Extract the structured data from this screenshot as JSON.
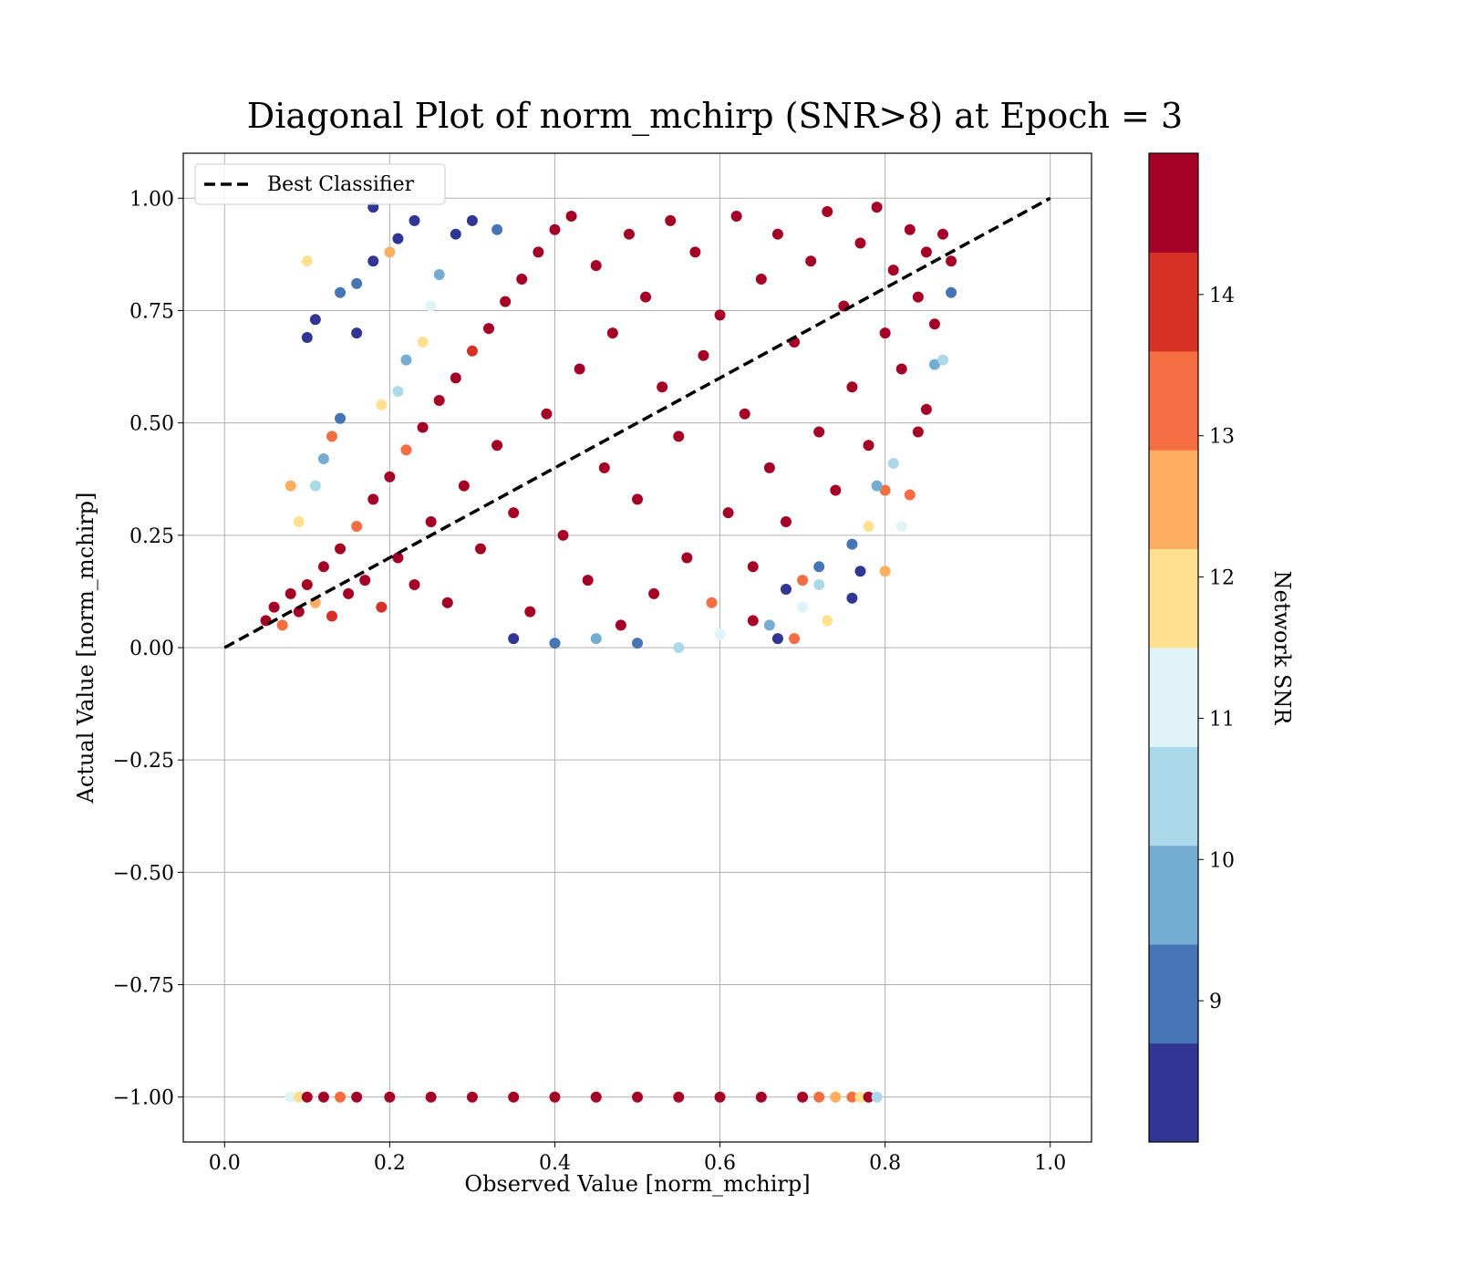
{
  "chart_data": {
    "type": "scatter",
    "title": "Diagonal Plot of norm_mchirp (SNR>8) at Epoch = 3",
    "xlabel": "Observed Value [norm_mchirp]",
    "ylabel": "Actual Value [norm_mchirp]",
    "xlim": [
      -0.05,
      1.05
    ],
    "ylim": [
      -1.1,
      1.1
    ],
    "x_ticks": [
      0.0,
      0.2,
      0.4,
      0.6,
      0.8,
      1.0
    ],
    "x_tick_labels": [
      "0.0",
      "0.2",
      "0.4",
      "0.6",
      "0.8",
      "1.0"
    ],
    "y_ticks": [
      1.0,
      0.75,
      0.5,
      0.25,
      0.0,
      -0.25,
      -0.5,
      -0.75,
      -1.0
    ],
    "y_tick_labels": [
      "1.00",
      "0.75",
      "0.50",
      "0.25",
      "0.00",
      "−0.25",
      "−0.50",
      "−0.75",
      "−1.00"
    ],
    "grid": true,
    "legend": {
      "placement": "upper-left",
      "entries": [
        {
          "label": "Best Classifier",
          "style": "dashed",
          "color": "#000000"
        }
      ]
    },
    "reference_line": {
      "name": "Best Classifier",
      "x": [
        0.0,
        1.0
      ],
      "y": [
        0.0,
        1.0
      ],
      "style": "dashed"
    },
    "color_dimension": "Network SNR",
    "colorbar": {
      "label": "Network SNR",
      "range": [
        8.0,
        15.0
      ],
      "ticks": [
        9,
        10,
        11,
        12,
        13,
        14
      ],
      "tick_labels": [
        "9",
        "10",
        "11",
        "12",
        "13",
        "14"
      ],
      "colors": [
        "#313695",
        "#4575b4",
        "#74add1",
        "#abd9e9",
        "#e0f3f8",
        "#fee090",
        "#fdae61",
        "#f46d43",
        "#d73027",
        "#a50026"
      ]
    },
    "series": [
      {
        "kind": "main-cloud",
        "points": [
          [
            0.05,
            0.06,
            14.8
          ],
          [
            0.06,
            0.09,
            14.5
          ],
          [
            0.07,
            0.05,
            13.2
          ],
          [
            0.08,
            0.12,
            14.9
          ],
          [
            0.09,
            0.08,
            14.6
          ],
          [
            0.1,
            0.14,
            14.9
          ],
          [
            0.11,
            0.1,
            12.8
          ],
          [
            0.12,
            0.18,
            14.7
          ],
          [
            0.13,
            0.07,
            13.9
          ],
          [
            0.14,
            0.22,
            14.8
          ],
          [
            0.15,
            0.12,
            14.9
          ],
          [
            0.16,
            0.27,
            13.5
          ],
          [
            0.17,
            0.15,
            14.9
          ],
          [
            0.18,
            0.33,
            14.6
          ],
          [
            0.19,
            0.09,
            14.2
          ],
          [
            0.2,
            0.38,
            14.9
          ],
          [
            0.21,
            0.2,
            14.8
          ],
          [
            0.22,
            0.44,
            13.1
          ],
          [
            0.23,
            0.14,
            14.9
          ],
          [
            0.24,
            0.49,
            14.7
          ],
          [
            0.25,
            0.28,
            14.9
          ],
          [
            0.26,
            0.55,
            14.4
          ],
          [
            0.27,
            0.1,
            14.9
          ],
          [
            0.28,
            0.6,
            14.8
          ],
          [
            0.29,
            0.36,
            14.9
          ],
          [
            0.3,
            0.66,
            13.8
          ],
          [
            0.31,
            0.22,
            14.9
          ],
          [
            0.32,
            0.71,
            14.6
          ],
          [
            0.33,
            0.45,
            14.9
          ],
          [
            0.34,
            0.77,
            14.8
          ],
          [
            0.35,
            0.3,
            14.9
          ],
          [
            0.36,
            0.82,
            14.3
          ],
          [
            0.37,
            0.08,
            14.9
          ],
          [
            0.38,
            0.88,
            14.7
          ],
          [
            0.39,
            0.52,
            14.9
          ],
          [
            0.4,
            0.93,
            14.8
          ],
          [
            0.41,
            0.25,
            14.9
          ],
          [
            0.42,
            0.96,
            14.5
          ],
          [
            0.43,
            0.62,
            14.9
          ],
          [
            0.44,
            0.15,
            14.8
          ],
          [
            0.45,
            0.85,
            14.9
          ],
          [
            0.46,
            0.4,
            14.7
          ],
          [
            0.47,
            0.7,
            14.9
          ],
          [
            0.48,
            0.05,
            14.6
          ],
          [
            0.49,
            0.92,
            14.9
          ],
          [
            0.5,
            0.33,
            14.8
          ],
          [
            0.51,
            0.78,
            14.9
          ],
          [
            0.52,
            0.12,
            14.4
          ],
          [
            0.53,
            0.58,
            14.9
          ],
          [
            0.54,
            0.95,
            14.8
          ],
          [
            0.55,
            0.47,
            14.9
          ],
          [
            0.56,
            0.2,
            14.7
          ],
          [
            0.57,
            0.88,
            14.9
          ],
          [
            0.58,
            0.65,
            14.6
          ],
          [
            0.59,
            0.1,
            13.6
          ],
          [
            0.6,
            0.74,
            14.9
          ],
          [
            0.61,
            0.3,
            14.8
          ],
          [
            0.62,
            0.96,
            14.9
          ],
          [
            0.63,
            0.52,
            14.5
          ],
          [
            0.64,
            0.18,
            14.9
          ],
          [
            0.65,
            0.82,
            14.8
          ],
          [
            0.66,
            0.4,
            14.9
          ],
          [
            0.67,
            0.92,
            14.7
          ],
          [
            0.68,
            0.28,
            14.9
          ],
          [
            0.69,
            0.68,
            14.6
          ],
          [
            0.7,
            0.15,
            13.4
          ],
          [
            0.71,
            0.86,
            14.9
          ],
          [
            0.72,
            0.48,
            14.8
          ],
          [
            0.73,
            0.97,
            14.9
          ],
          [
            0.74,
            0.35,
            14.3
          ],
          [
            0.75,
            0.76,
            14.9
          ],
          [
            0.76,
            0.58,
            14.8
          ],
          [
            0.77,
            0.9,
            14.9
          ],
          [
            0.78,
            0.45,
            14.7
          ],
          [
            0.79,
            0.98,
            14.9
          ],
          [
            0.8,
            0.7,
            14.6
          ],
          [
            0.81,
            0.84,
            14.9
          ],
          [
            0.82,
            0.62,
            14.8
          ],
          [
            0.83,
            0.93,
            14.9
          ],
          [
            0.84,
            0.78,
            14.5
          ],
          [
            0.85,
            0.88,
            14.9
          ],
          [
            0.86,
            0.72,
            14.8
          ],
          [
            0.87,
            0.92,
            14.9
          ],
          [
            0.88,
            0.86,
            14.7
          ]
        ]
      },
      {
        "kind": "low-snr-scatter",
        "points": [
          [
            0.1,
            0.69,
            8.2
          ],
          [
            0.11,
            0.73,
            8.4
          ],
          [
            0.14,
            0.79,
            9.1
          ],
          [
            0.16,
            0.81,
            9.3
          ],
          [
            0.18,
            0.98,
            8.3
          ],
          [
            0.16,
            0.7,
            8.6
          ],
          [
            0.18,
            0.86,
            8.2
          ],
          [
            0.2,
            0.88,
            12.3
          ],
          [
            0.21,
            0.91,
            8.5
          ],
          [
            0.23,
            0.95,
            8.2
          ],
          [
            0.12,
            0.42,
            9.4
          ],
          [
            0.13,
            0.47,
            13.1
          ],
          [
            0.11,
            0.36,
            10.3
          ],
          [
            0.09,
            0.28,
            12.0
          ],
          [
            0.08,
            0.36,
            12.7
          ],
          [
            0.14,
            0.51,
            9.2
          ],
          [
            0.19,
            0.54,
            11.5
          ],
          [
            0.22,
            0.64,
            10.1
          ],
          [
            0.25,
            0.76,
            11.2
          ],
          [
            0.26,
            0.83,
            9.8
          ],
          [
            0.28,
            0.92,
            8.7
          ],
          [
            0.3,
            0.95,
            8.4
          ],
          [
            0.33,
            0.93,
            9.0
          ],
          [
            0.24,
            0.68,
            12.2
          ],
          [
            0.21,
            0.57,
            10.6
          ],
          [
            0.1,
            0.86,
            12.1
          ],
          [
            0.76,
            0.11,
            8.1
          ],
          [
            0.77,
            0.17,
            8.3
          ],
          [
            0.76,
            0.23,
            8.9
          ],
          [
            0.8,
            0.17,
            12.8
          ],
          [
            0.82,
            0.27,
            11.1
          ],
          [
            0.8,
            0.35,
            13.2
          ],
          [
            0.81,
            0.41,
            10.2
          ],
          [
            0.83,
            0.34,
            13.4
          ],
          [
            0.78,
            0.27,
            12.1
          ],
          [
            0.79,
            0.36,
            9.4
          ],
          [
            0.73,
            0.06,
            11.8
          ],
          [
            0.69,
            0.02,
            13.0
          ],
          [
            0.67,
            0.02,
            8.3
          ],
          [
            0.64,
            0.06,
            14.6
          ],
          [
            0.7,
            0.09,
            11.4
          ],
          [
            0.72,
            0.14,
            10.2
          ],
          [
            0.72,
            0.18,
            9.1
          ],
          [
            0.68,
            0.13,
            8.5
          ],
          [
            0.66,
            0.05,
            9.7
          ],
          [
            0.6,
            0.03,
            10.8
          ],
          [
            0.55,
            0.0,
            10.4
          ],
          [
            0.5,
            0.01,
            8.8
          ],
          [
            0.45,
            0.02,
            9.6
          ],
          [
            0.4,
            0.01,
            9.2
          ],
          [
            0.35,
            0.02,
            8.6
          ],
          [
            0.84,
            0.48,
            14.5
          ],
          [
            0.85,
            0.53,
            14.9
          ],
          [
            0.86,
            0.63,
            9.5
          ],
          [
            0.87,
            0.64,
            10.7
          ],
          [
            0.88,
            0.79,
            9.2
          ]
        ]
      },
      {
        "kind": "missing-value-row",
        "y": -1.0,
        "x_range": [
          0.08,
          0.79
        ],
        "points": [
          [
            0.08,
            -1.0,
            11.0
          ],
          [
            0.09,
            -1.0,
            12.0
          ],
          [
            0.1,
            -1.0,
            14.8
          ],
          [
            0.12,
            -1.0,
            14.9
          ],
          [
            0.14,
            -1.0,
            13.5
          ],
          [
            0.16,
            -1.0,
            14.9
          ],
          [
            0.2,
            -1.0,
            14.9
          ],
          [
            0.25,
            -1.0,
            14.9
          ],
          [
            0.3,
            -1.0,
            14.9
          ],
          [
            0.35,
            -1.0,
            14.9
          ],
          [
            0.4,
            -1.0,
            14.9
          ],
          [
            0.45,
            -1.0,
            14.9
          ],
          [
            0.5,
            -1.0,
            14.9
          ],
          [
            0.55,
            -1.0,
            14.9
          ],
          [
            0.6,
            -1.0,
            14.9
          ],
          [
            0.65,
            -1.0,
            14.9
          ],
          [
            0.7,
            -1.0,
            14.9
          ],
          [
            0.72,
            -1.0,
            13.0
          ],
          [
            0.74,
            -1.0,
            12.5
          ],
          [
            0.76,
            -1.0,
            13.6
          ],
          [
            0.77,
            -1.0,
            12.2
          ],
          [
            0.78,
            -1.0,
            14.6
          ],
          [
            0.79,
            -1.0,
            10.4
          ]
        ]
      }
    ]
  }
}
